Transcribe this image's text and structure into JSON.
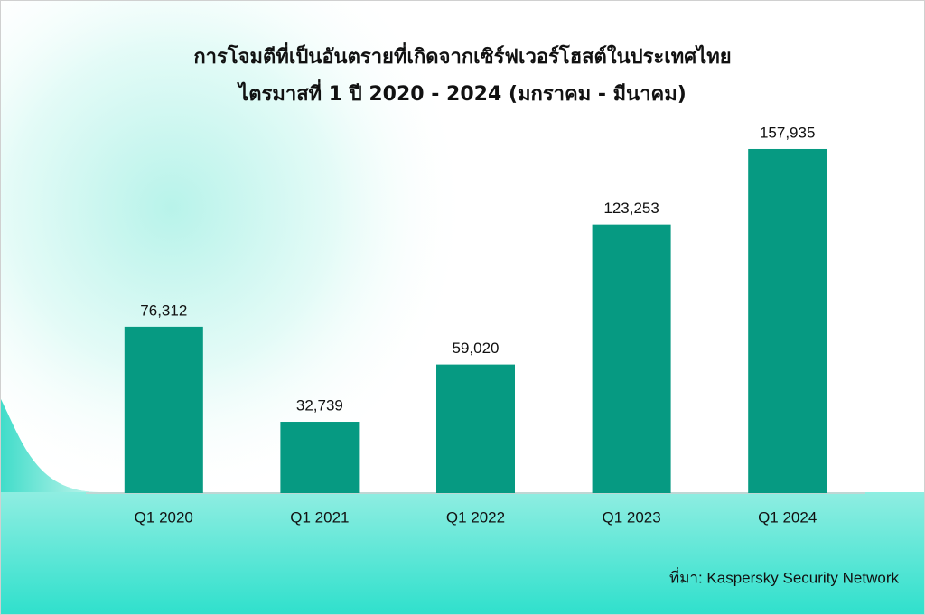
{
  "chart_data": {
    "type": "bar",
    "title": [
      "การโจมตีที่เป็นอันตรายที่เกิดจากเซิร์ฟเวอร์โฮสต์ในประเทศไทย",
      "ไตรมาสที่ 1 ปี 2020 - 2024 (มกราคม - มีนาคม)"
    ],
    "categories": [
      "Q1 2020",
      "Q1 2021",
      "Q1 2022",
      "Q1 2023",
      "Q1 2024"
    ],
    "values": [
      76312,
      32739,
      59020,
      123253,
      157935
    ],
    "value_labels": [
      "76,312",
      "32,739",
      "59,020",
      "123,253",
      "157,935"
    ],
    "color": "#069a82",
    "ylim": [
      0,
      160000
    ],
    "source": "ที่มา: Kaspersky Security Network"
  }
}
